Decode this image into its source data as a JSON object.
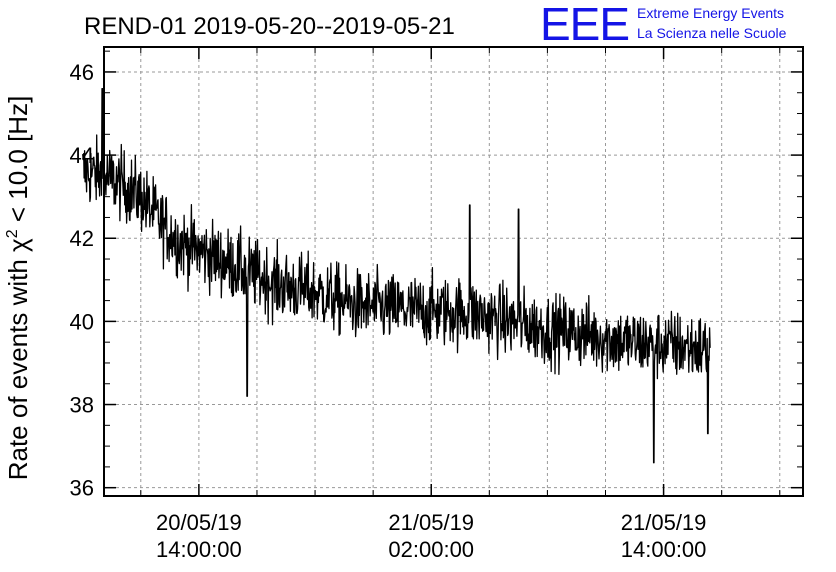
{
  "chart_data": {
    "type": "line",
    "title": "REND-01 2019-05-20--2019-05-21",
    "ylabel": {
      "prefix": "Rate of events with ",
      "symbol": "χ",
      "superscript": "2",
      "suffix": " < 10.0 [Hz]"
    },
    "xlabel": "",
    "ylim": [
      35.8,
      46.6
    ],
    "xlim_hours": [
      -4.9,
      31.2
    ],
    "y_ticks": [
      36,
      38,
      40,
      42,
      44,
      46
    ],
    "x_ticks": [
      {
        "date": "20/05/19",
        "time": "14:00:00",
        "hour": 0
      },
      {
        "date": "21/05/19",
        "time": "02:00:00",
        "hour": 12
      },
      {
        "date": "21/05/19",
        "time": "14:00:00",
        "hour": 24
      }
    ],
    "x_minor_tick_hours": [
      -6,
      -3,
      3,
      6,
      9,
      15,
      18,
      21,
      27,
      30
    ],
    "grid": true,
    "series": [
      {
        "name": "rate",
        "x_hours": [
          -6.0,
          -5.0,
          -4.0,
          -3.0,
          -2.0,
          -1.0,
          0.0,
          2.0,
          4.0,
          6.0,
          8.0,
          10.0,
          12.0,
          14.0,
          16.0,
          18.0,
          20.0,
          22.0,
          24.0,
          25.0,
          26.0,
          26.4
        ],
        "y_mean": [
          43.6,
          43.5,
          43.3,
          43.0,
          42.4,
          41.9,
          41.7,
          41.3,
          40.9,
          40.7,
          40.4,
          40.3,
          40.25,
          40.2,
          40.0,
          39.8,
          39.7,
          39.5,
          39.45,
          39.4,
          39.35,
          39.3
        ],
        "noise_amplitude": 0.75,
        "n_points": 1300,
        "spikes_up": [
          {
            "x_hours": -5.0,
            "y": 45.6
          },
          {
            "x_hours": 14.0,
            "y": 42.8
          },
          {
            "x_hours": 16.5,
            "y": 42.7
          }
        ],
        "spikes_down": [
          {
            "x_hours": 23.5,
            "y": 36.6
          },
          {
            "x_hours": 26.3,
            "y": 37.3
          },
          {
            "x_hours": 2.5,
            "y": 38.2
          }
        ]
      }
    ]
  },
  "logo": {
    "mark": "EEE",
    "line1": "Extreme Energy Events",
    "line2": "La Scienza nelle Scuole",
    "color": "#1414e6"
  }
}
